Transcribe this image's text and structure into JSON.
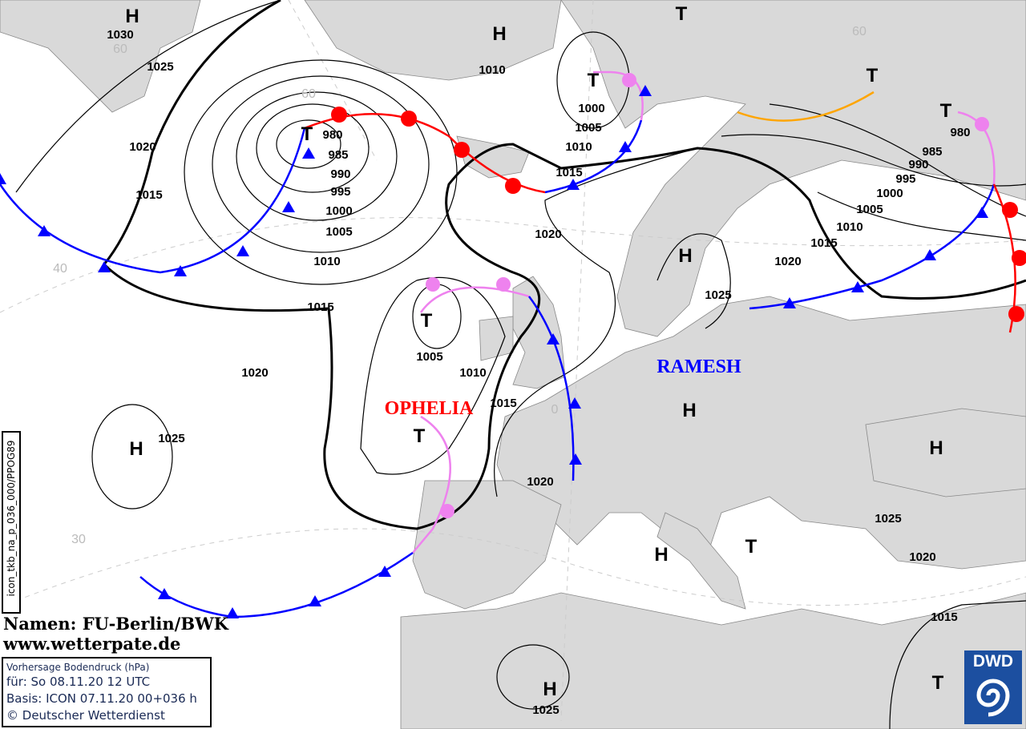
{
  "map": {
    "centers": [
      {
        "type": "H"
      },
      {
        "type": "H"
      },
      {
        "type": "T"
      },
      {
        "type": "T"
      },
      {
        "type": "T"
      },
      {
        "type": "T"
      },
      {
        "type": "H"
      },
      {
        "type": "T"
      },
      {
        "type": "T"
      },
      {
        "type": "H"
      },
      {
        "type": "H"
      },
      {
        "type": "T"
      },
      {
        "type": "H"
      },
      {
        "type": "H"
      },
      {
        "type": "T"
      },
      {
        "type": "H"
      },
      {
        "type": "T"
      }
    ],
    "isobar_labels": [
      "1030",
      "1025",
      "1020",
      "1015",
      "980",
      "985",
      "990",
      "995",
      "1000",
      "1005",
      "1010",
      "1010",
      "1000",
      "1005",
      "1010",
      "1015",
      "1020",
      "1015",
      "1005",
      "1010",
      "1015",
      "1025",
      "1020",
      "980",
      "985",
      "990",
      "995",
      "1000",
      "1005",
      "1010",
      "1015",
      "1020",
      "1025",
      "1020",
      "1025",
      "1020",
      "1015",
      "1025"
    ],
    "lat_labels": [
      "60",
      "60",
      "40",
      "30",
      "0",
      "60"
    ],
    "storm_names": [
      {
        "name": "OPHELIA",
        "color": "#ff0000"
      },
      {
        "name": "RAMESH",
        "color": "#0000ff"
      }
    ],
    "colors": {
      "land": "#d9d9d9",
      "sea": "#ffffff",
      "cold_front": "#0000ff",
      "warm_front": "#ff0000",
      "occlusion": "#ee82ee",
      "trough": "#ffa500"
    }
  },
  "credits": {
    "names": "Namen: FU-Berlin/BWK",
    "website": "www.wetterpate.de"
  },
  "info": {
    "title": "Vorhersage Bodendruck (hPa)",
    "valid": "für:  So 08.11.20  12 UTC",
    "basis": "Basis: ICON  07.11.20 00+036 h",
    "copyright": "© Deutscher Wetterdienst"
  },
  "product_id": "icon_tkb_na_p_036_000/PPOG89",
  "logo": {
    "text": "DWD"
  }
}
